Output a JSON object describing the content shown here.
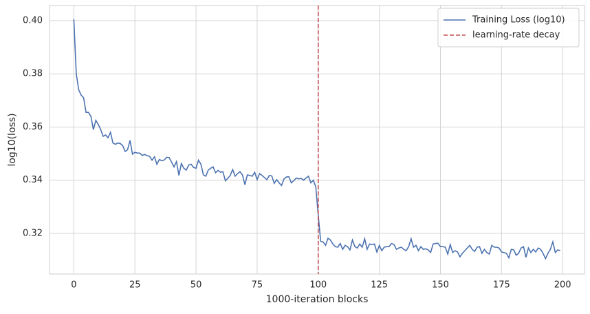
{
  "chart_data": {
    "type": "line",
    "xlabel": "1000-iteration blocks",
    "ylabel": "log10(loss)",
    "x": [
      0,
      1,
      2,
      3,
      4,
      5,
      6,
      7,
      8,
      9,
      10,
      11,
      12,
      13,
      14,
      15,
      16,
      17,
      18,
      19,
      20,
      21,
      22,
      23,
      24,
      25,
      26,
      27,
      28,
      29,
      30,
      31,
      32,
      33,
      34,
      35,
      36,
      37,
      38,
      39,
      40,
      41,
      42,
      43,
      44,
      45,
      46,
      47,
      48,
      49,
      50,
      51,
      52,
      53,
      54,
      55,
      56,
      57,
      58,
      59,
      60,
      61,
      62,
      63,
      64,
      65,
      66,
      67,
      68,
      69,
      70,
      71,
      72,
      73,
      74,
      75,
      76,
      77,
      78,
      79,
      80,
      81,
      82,
      83,
      84,
      85,
      86,
      87,
      88,
      89,
      90,
      91,
      92,
      93,
      94,
      95,
      96,
      97,
      98,
      99,
      100,
      101,
      102,
      103,
      104,
      105,
      106,
      107,
      108,
      109,
      110,
      111,
      112,
      113,
      114,
      115,
      116,
      117,
      118,
      119,
      120,
      121,
      122,
      123,
      124,
      125,
      126,
      127,
      128,
      129,
      130,
      131,
      132,
      133,
      134,
      135,
      136,
      137,
      138,
      139,
      140,
      141,
      142,
      143,
      144,
      145,
      146,
      147,
      148,
      149,
      150,
      151,
      152,
      153,
      154,
      155,
      156,
      157,
      158,
      159,
      160,
      161,
      162,
      163,
      164,
      165,
      166,
      167,
      168,
      169,
      170,
      171,
      172,
      173,
      174,
      175,
      176,
      177,
      178,
      179,
      180,
      181,
      182,
      183,
      184,
      185,
      186,
      187,
      188,
      189,
      190,
      191,
      192,
      193,
      194,
      195,
      196,
      197,
      198,
      199
    ],
    "series": [
      {
        "name": "Training Loss (log10)",
        "color": "#4c72b0",
        "values": [
          0.4005,
          0.38,
          0.374,
          0.372,
          0.371,
          0.3655,
          0.3655,
          0.364,
          0.359,
          0.3625,
          0.361,
          0.359,
          0.3565,
          0.357,
          0.356,
          0.358,
          0.354,
          0.3535,
          0.354,
          0.3538,
          0.353,
          0.3508,
          0.3515,
          0.355,
          0.3498,
          0.3505,
          0.3502,
          0.3502,
          0.3493,
          0.3497,
          0.3492,
          0.349,
          0.3475,
          0.3488,
          0.346,
          0.3478,
          0.3473,
          0.3476,
          0.3486,
          0.3485,
          0.3468,
          0.345,
          0.347,
          0.3418,
          0.3463,
          0.3445,
          0.3438,
          0.3457,
          0.346,
          0.3448,
          0.3445,
          0.3475,
          0.346,
          0.342,
          0.3415,
          0.3438,
          0.3445,
          0.345,
          0.3428,
          0.3437,
          0.343,
          0.3432,
          0.3398,
          0.3407,
          0.3418,
          0.344,
          0.3415,
          0.3425,
          0.3432,
          0.342,
          0.3383,
          0.342,
          0.3418,
          0.3415,
          0.343,
          0.3402,
          0.3425,
          0.3418,
          0.341,
          0.3402,
          0.3418,
          0.3416,
          0.3388,
          0.3402,
          0.339,
          0.338,
          0.3405,
          0.3412,
          0.3413,
          0.339,
          0.3398,
          0.3408,
          0.3405,
          0.3407,
          0.34,
          0.3408,
          0.3415,
          0.339,
          0.34,
          0.3375,
          0.327,
          0.317,
          0.3168,
          0.3155,
          0.3182,
          0.3175,
          0.316,
          0.315,
          0.3148,
          0.3162,
          0.314,
          0.3155,
          0.315,
          0.3138,
          0.3175,
          0.315,
          0.3145,
          0.316,
          0.3148,
          0.318,
          0.314,
          0.316,
          0.3158,
          0.316,
          0.313,
          0.3155,
          0.3135,
          0.3148,
          0.315,
          0.315,
          0.3162,
          0.3158,
          0.314,
          0.3145,
          0.3148,
          0.314,
          0.3135,
          0.315,
          0.318,
          0.3148,
          0.3155,
          0.3135,
          0.315,
          0.314,
          0.3142,
          0.3138,
          0.3128,
          0.316,
          0.3162,
          0.3163,
          0.315,
          0.315,
          0.3148,
          0.3122,
          0.3158,
          0.3128,
          0.3135,
          0.313,
          0.3112,
          0.3125,
          0.3135,
          0.3145,
          0.3155,
          0.314,
          0.3132,
          0.3148,
          0.315,
          0.3125,
          0.314,
          0.3128,
          0.3122,
          0.3155,
          0.3148,
          0.3148,
          0.3145,
          0.313,
          0.3128,
          0.3125,
          0.3108,
          0.314,
          0.3138,
          0.3118,
          0.3125,
          0.3145,
          0.315,
          0.311,
          0.3145,
          0.3128,
          0.314,
          0.313,
          0.3145,
          0.314,
          0.3125,
          0.3105,
          0.3125,
          0.314,
          0.3168,
          0.3128,
          0.3138,
          0.3135
        ]
      }
    ],
    "vline": {
      "x": 100,
      "label": "learning-rate decay",
      "color": "#c44e52"
    },
    "xlim": [
      -9.95,
      208.95
    ],
    "xticks": [
      0,
      25,
      50,
      75,
      100,
      125,
      150,
      175,
      200
    ],
    "ylim": [
      0.3047,
      0.4057
    ],
    "yticks": [
      0.32,
      0.34,
      0.36,
      0.38,
      {
        "value": 0.4,
        "label": "0.40"
      }
    ],
    "grid": true,
    "legend": "upper right"
  }
}
